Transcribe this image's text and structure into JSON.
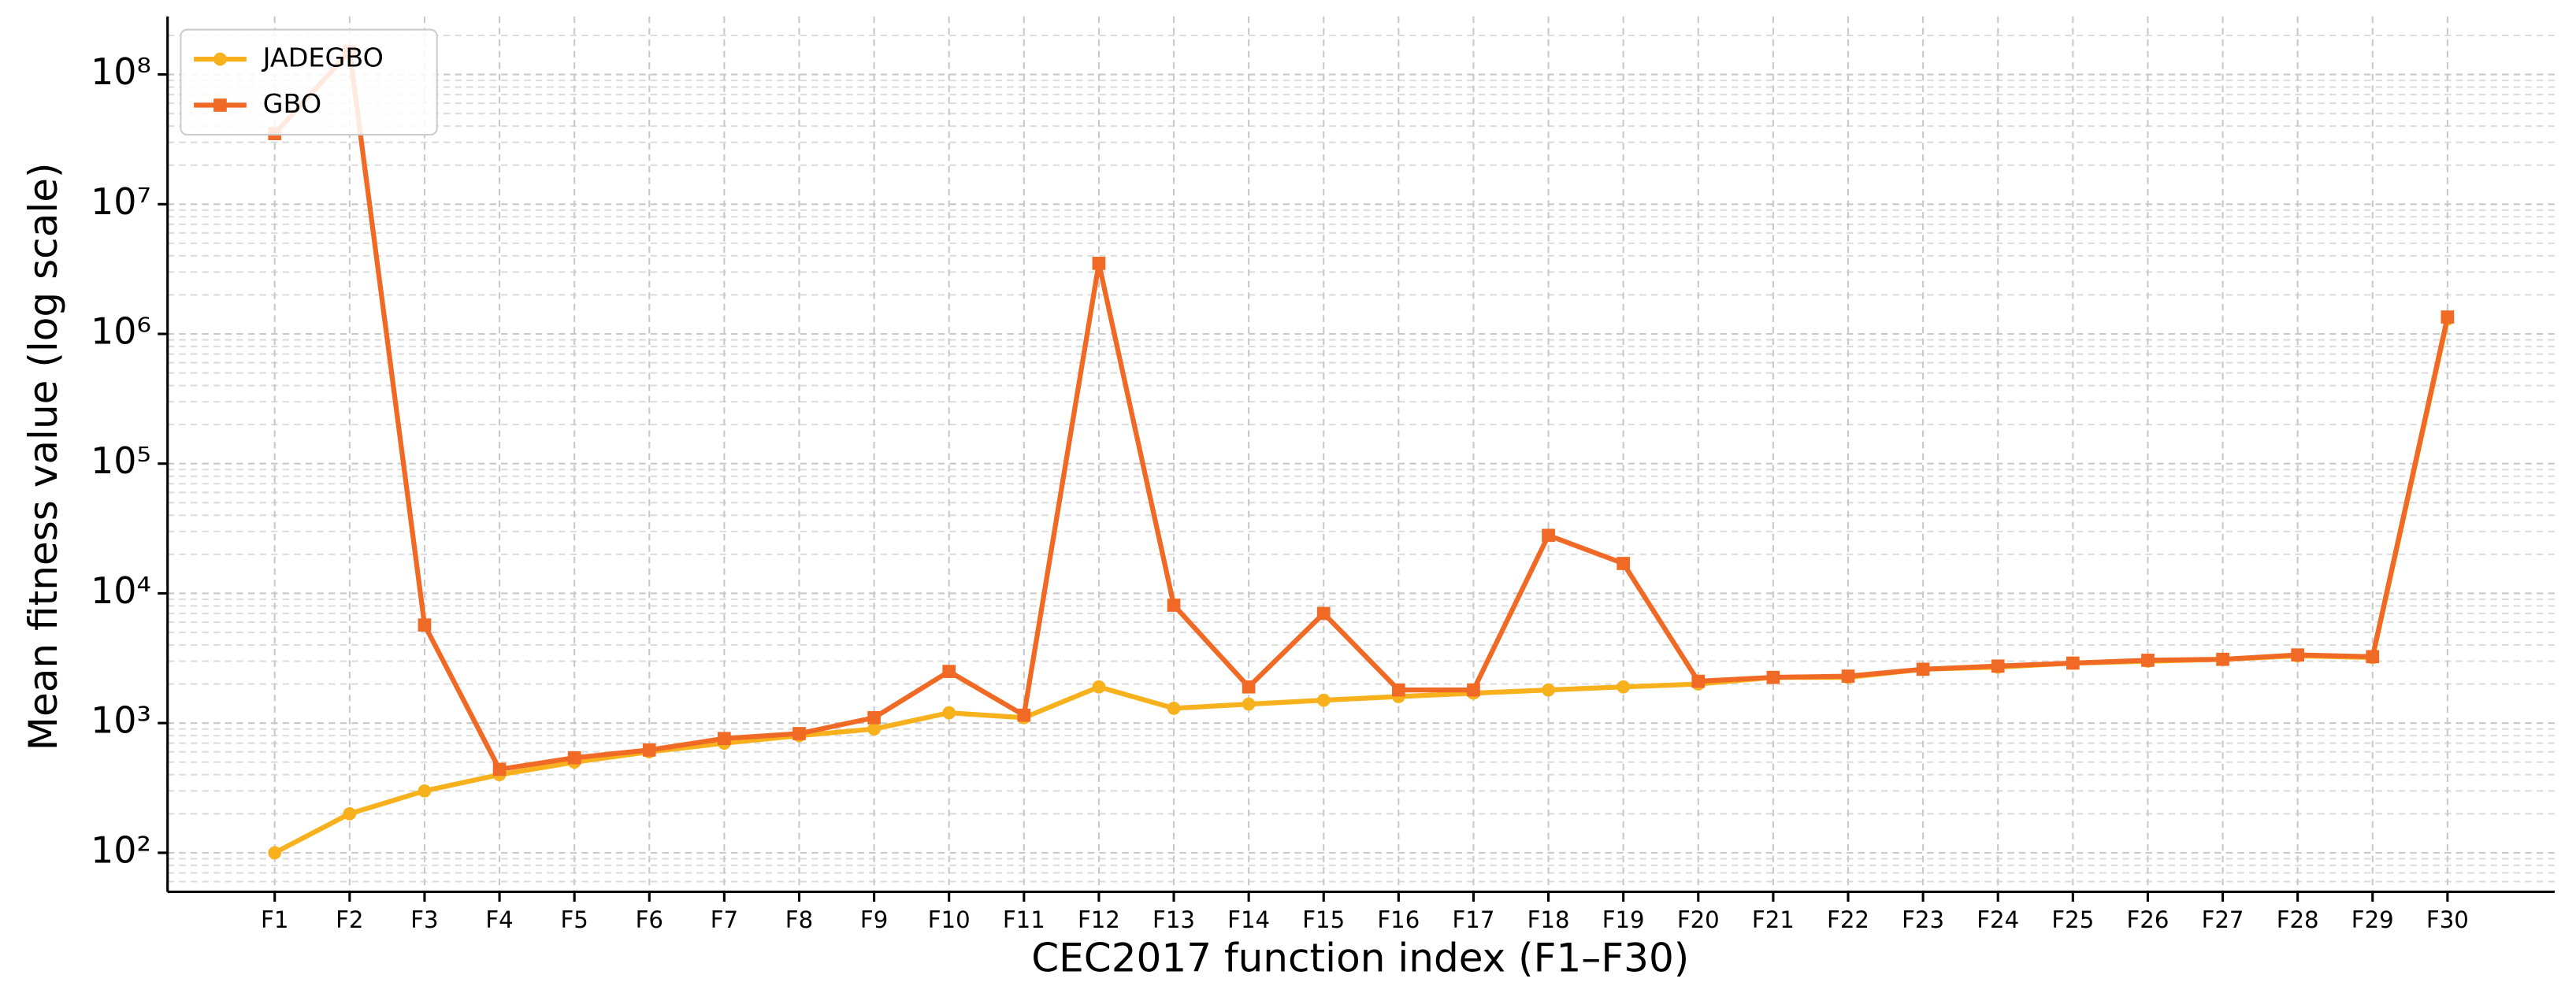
{
  "chart_data": {
    "type": "line",
    "log_scale": true,
    "grid": true,
    "minor_grid": true,
    "legend": "upper left",
    "xlabel": "CEC2017 function index (F1–F30)",
    "ylabel": "Mean fitness value (log scale)",
    "categories": [
      "F1",
      "F2",
      "F3",
      "F4",
      "F5",
      "F6",
      "F7",
      "F8",
      "F9",
      "F10",
      "F11",
      "F12",
      "F13",
      "F14",
      "F15",
      "F16",
      "F17",
      "F18",
      "F19",
      "F20",
      "F21",
      "F22",
      "F23",
      "F24",
      "F25",
      "F26",
      "F27",
      "F28",
      "F29",
      "F30"
    ],
    "ylim": [
      50,
      280000000
    ],
    "yticks": [
      {
        "value": 100,
        "label": "10²"
      },
      {
        "value": 1000,
        "label": "10³"
      },
      {
        "value": 10000,
        "label": "10⁴"
      },
      {
        "value": 100000,
        "label": "10⁵"
      },
      {
        "value": 1000000,
        "label": "10⁶"
      },
      {
        "value": 10000000,
        "label": "10⁷"
      },
      {
        "value": 100000000,
        "label": "10⁸"
      }
    ],
    "series": [
      {
        "name": "JADEGBO",
        "color": "#f6b11c",
        "marker": "circle",
        "values": [
          100,
          200,
          300,
          400,
          500,
          600,
          700,
          800,
          900,
          1200,
          1100,
          1900,
          1300,
          1400,
          1500,
          1600,
          1700,
          1800,
          1900,
          2000,
          2250,
          2250,
          2600,
          2700,
          2900,
          3000,
          3100,
          3300,
          3200,
          1300000
        ]
      },
      {
        "name": "GBO",
        "color": "#f06a25",
        "marker": "square",
        "values": [
          35000000,
          150000000,
          5700.0,
          440,
          540,
          620,
          760,
          830,
          1100,
          2500,
          1150,
          3500000,
          8100,
          1900,
          7000,
          1800,
          1800,
          28000,
          17000,
          2100,
          2250,
          2300,
          2600,
          2750,
          2900,
          3050,
          3100,
          3350,
          3250,
          1350000
        ]
      }
    ]
  }
}
